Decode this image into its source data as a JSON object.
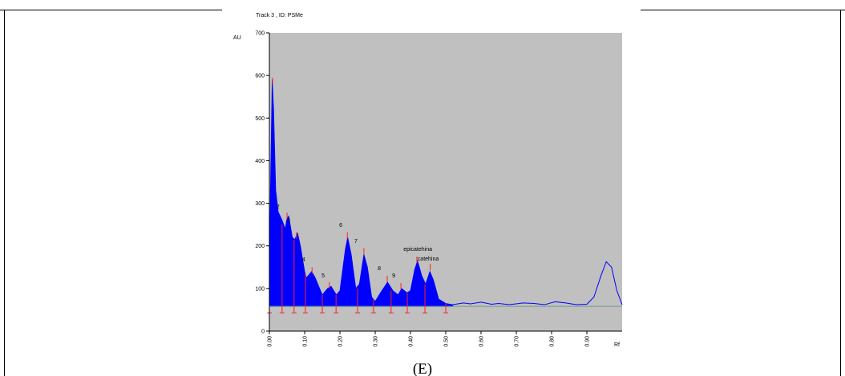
{
  "chart_data": {
    "type": "line",
    "title": "Track 3 , ID: PSMe",
    "ylabel": "AU",
    "xlabel": "Rf",
    "caption": "(E)",
    "background": "#c0c0c0",
    "xlim": [
      0,
      1
    ],
    "ylim": [
      0,
      700
    ],
    "yticks": [
      0,
      100,
      200,
      300,
      400,
      500,
      600,
      700
    ],
    "xticks": [
      {
        "value": 0,
        "label": "0.00"
      },
      {
        "value": 0.1,
        "label": "0.10"
      },
      {
        "value": 0.2,
        "label": "0.20"
      },
      {
        "value": 0.3,
        "label": "0.30"
      },
      {
        "value": 0.4,
        "label": "0.40"
      },
      {
        "value": 0.5,
        "label": "0.50"
      },
      {
        "value": 0.6,
        "label": "0.60"
      },
      {
        "value": 0.7,
        "label": "0.70"
      },
      {
        "value": 0.8,
        "label": "0.80"
      },
      {
        "value": 0.9,
        "label": "0.90"
      }
    ],
    "series": [
      {
        "color": "#0000ff",
        "fill": true,
        "x": [
          0,
          0.003,
          0.008,
          0.012,
          0.018,
          0.025,
          0.036,
          0.045,
          0.05,
          0.055,
          0.065,
          0.072,
          0.08,
          0.088,
          0.1,
          0.105,
          0.115,
          0.12,
          0.13,
          0.15,
          0.165,
          0.175,
          0.19,
          0.2,
          0.215,
          0.222,
          0.232,
          0.245,
          0.255,
          0.268,
          0.278,
          0.29,
          0.3,
          0.315,
          0.335,
          0.35,
          0.365,
          0.375,
          0.39,
          0.4,
          0.412,
          0.42,
          0.432,
          0.443,
          0.455,
          0.465,
          0.48,
          0.5,
          0.52
        ],
        "values": [
          120,
          330,
          590,
          520,
          330,
          280,
          260,
          240,
          265,
          270,
          220,
          215,
          230,
          200,
          140,
          125,
          135,
          140,
          125,
          85,
          100,
          105,
          85,
          95,
          190,
          220,
          180,
          100,
          110,
          180,
          150,
          80,
          70,
          90,
          115,
          95,
          85,
          100,
          90,
          95,
          145,
          165,
          130,
          110,
          140,
          120,
          75,
          65,
          62
        ]
      },
      {
        "color": "#0000ff",
        "fill": false,
        "x": [
          0.52,
          0.55,
          0.57,
          0.6,
          0.63,
          0.65,
          0.68,
          0.72,
          0.75,
          0.78,
          0.81,
          0.84,
          0.87,
          0.9,
          0.92,
          0.94,
          0.955,
          0.97,
          0.985,
          1.0
        ],
        "values": [
          62,
          66,
          64,
          68,
          63,
          65,
          62,
          66,
          65,
          62,
          69,
          66,
          62,
          63,
          80,
          130,
          163,
          150,
          95,
          62
        ]
      },
      {
        "color": "#6e9b8e",
        "fill": false,
        "x": [
          0,
          1
        ],
        "values": [
          58,
          58
        ]
      }
    ],
    "marker_color": "#ff2020",
    "boundaries": {
      "x": [
        0,
        0.036,
        0.07,
        0.102,
        0.15,
        0.189,
        0.25,
        0.295,
        0.345,
        0.391,
        0.441,
        0.5
      ],
      "values": [
        120,
        250,
        215,
        135,
        85,
        85,
        100,
        75,
        95,
        90,
        110,
        65
      ]
    },
    "peaks": {
      "x": [
        0.009,
        0.05,
        0.077,
        0.121,
        0.17,
        0.221,
        0.268,
        0.334,
        0.373,
        0.418,
        0.456
      ],
      "values": [
        595,
        278,
        232,
        150,
        115,
        232,
        195,
        130,
        113,
        175,
        158
      ]
    },
    "annotations": [
      {
        "text": "2",
        "x": 0.02,
        "y": 288
      },
      {
        "text": "3",
        "x": 0.05,
        "y": 256
      },
      {
        "text": "4",
        "x": 0.093,
        "y": 164
      },
      {
        "text": "5",
        "x": 0.148,
        "y": 126
      },
      {
        "text": "6",
        "x": 0.198,
        "y": 245
      },
      {
        "text": "7",
        "x": 0.241,
        "y": 207
      },
      {
        "text": "8",
        "x": 0.307,
        "y": 143
      },
      {
        "text": "9",
        "x": 0.348,
        "y": 126
      },
      {
        "text": "epicatehina",
        "x": 0.38,
        "y": 188
      },
      {
        "text": "catehina",
        "x": 0.42,
        "y": 166
      }
    ]
  }
}
